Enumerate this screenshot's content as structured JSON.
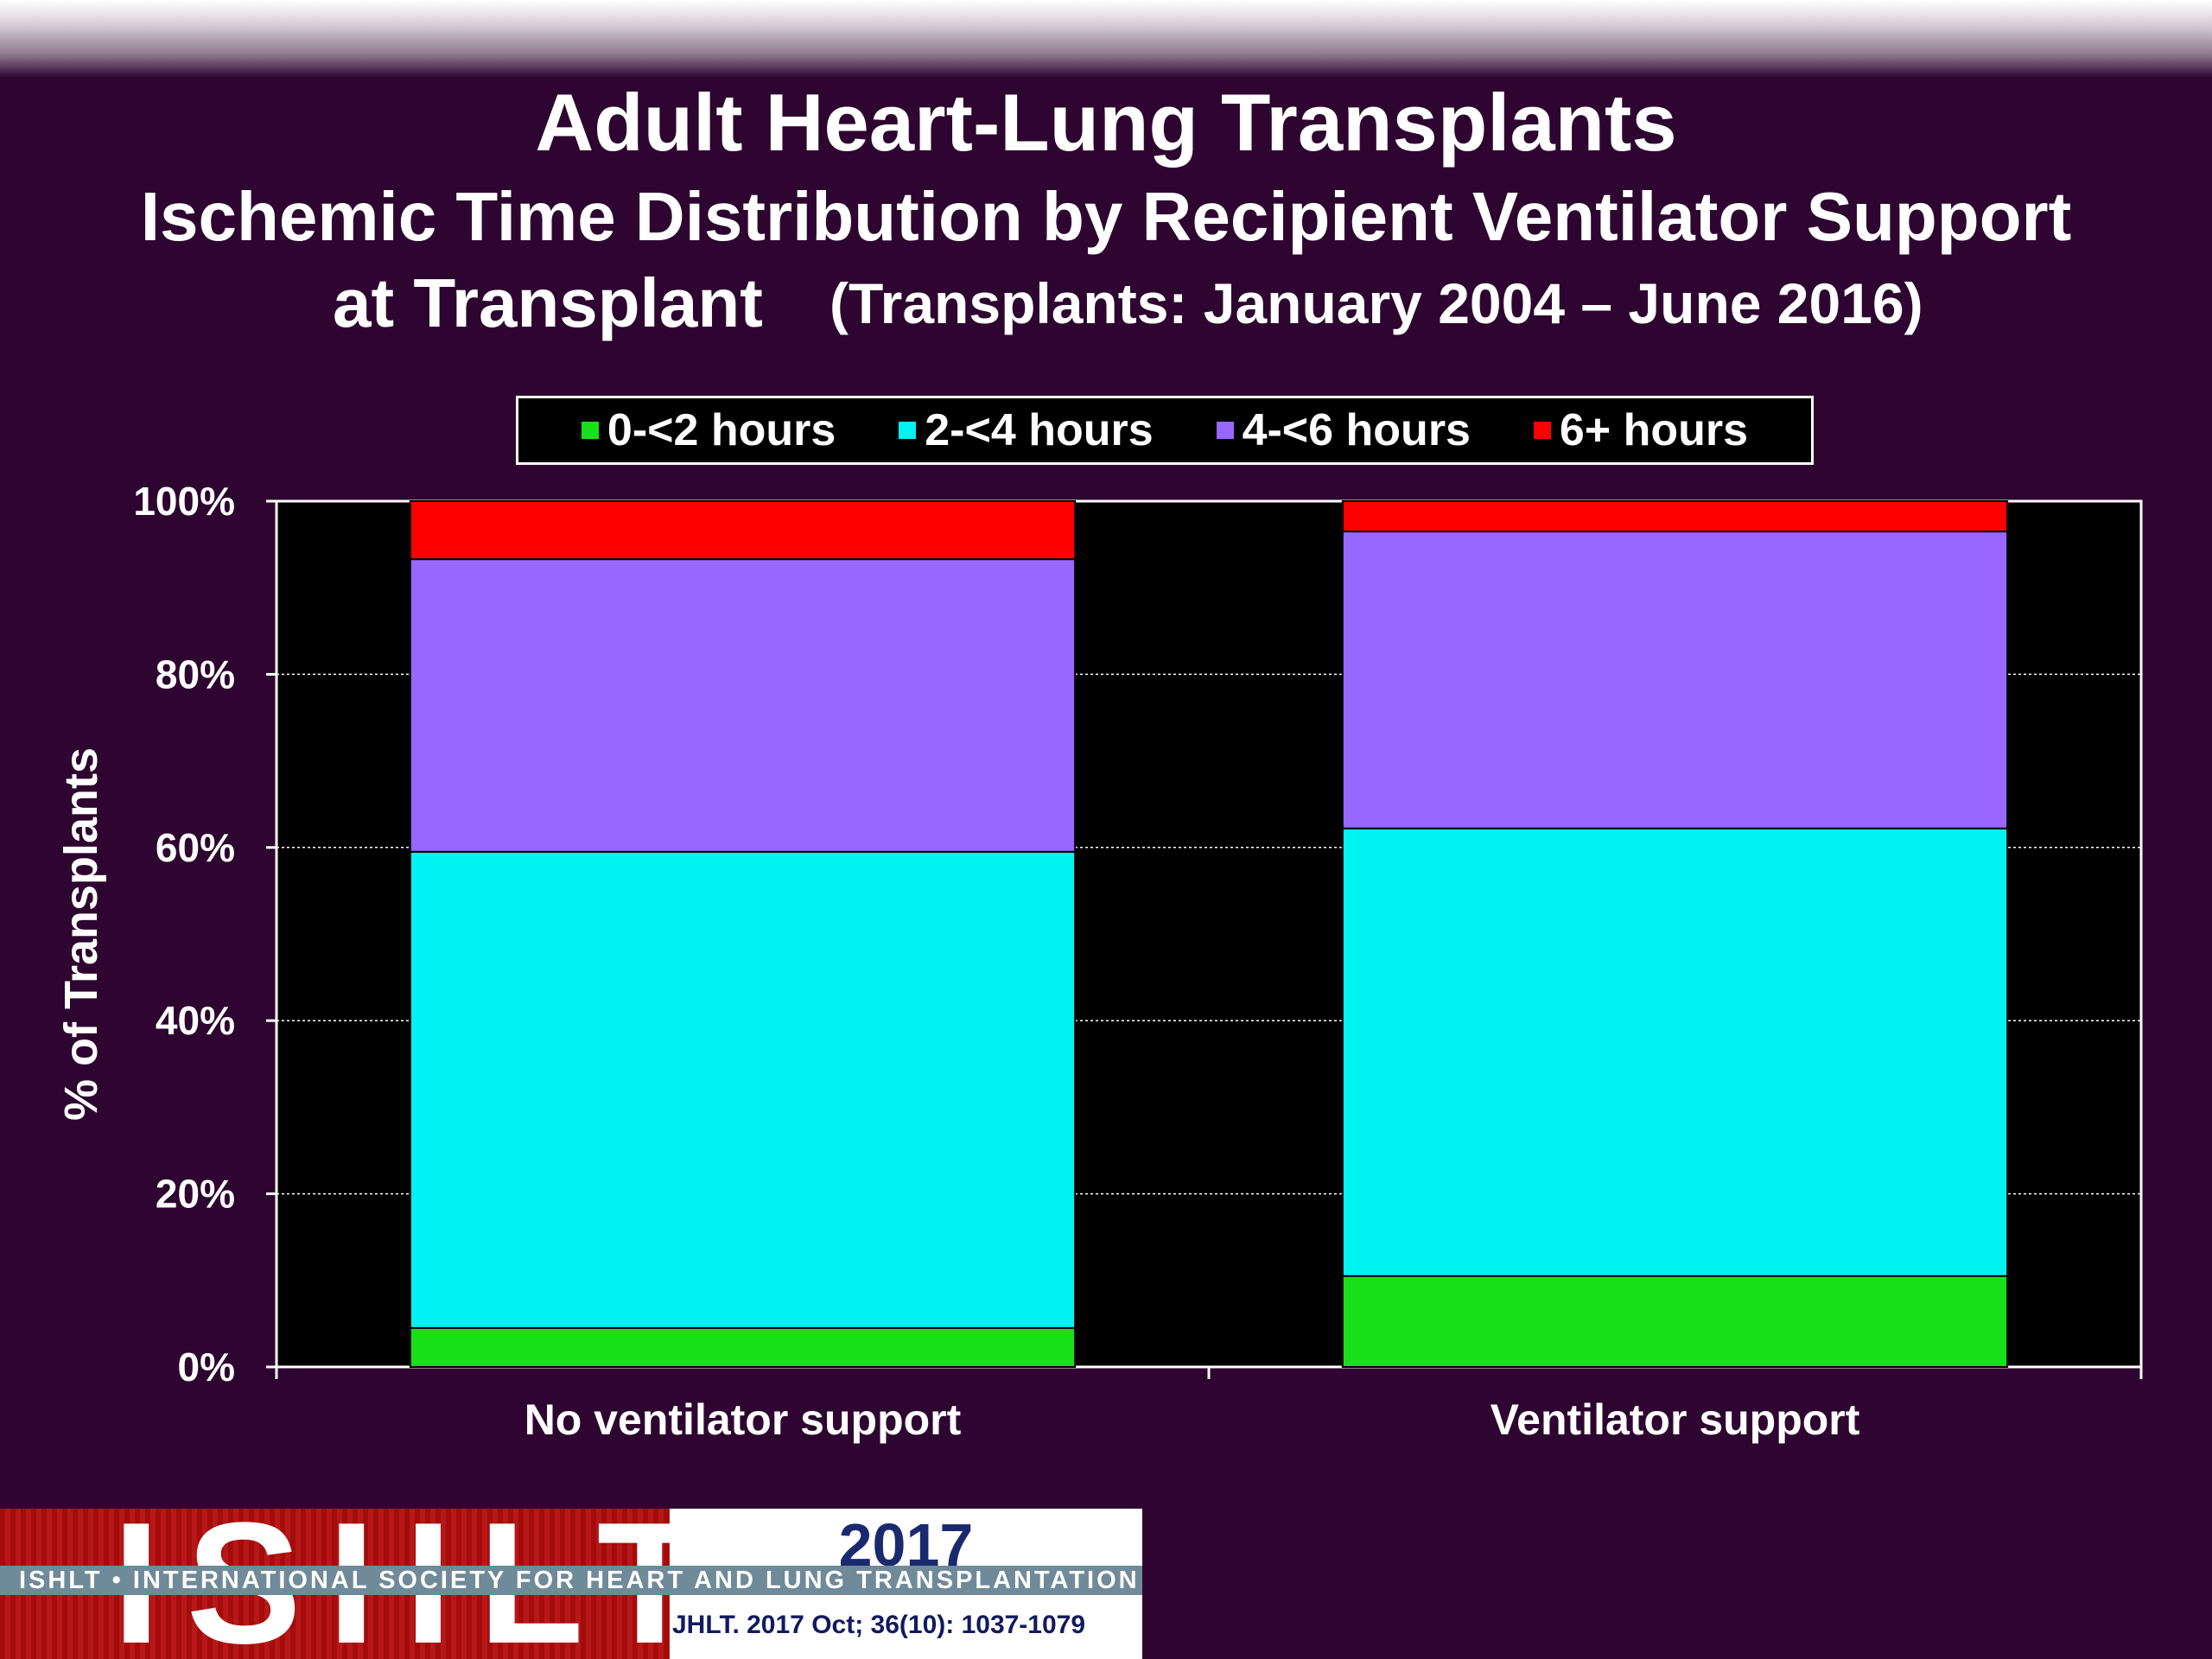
{
  "title": {
    "line1": "Adult Heart-Lung Transplants",
    "line2": "Ischemic Time Distribution by Recipient Ventilator Support",
    "line3": "at Transplant",
    "line3_sub": "(Transplants: January 2004 – June 2016)"
  },
  "footer": {
    "logo_text": "ISHLT",
    "year": "2017",
    "society": "ISHLT • INTERNATIONAL SOCIETY FOR HEART AND LUNG TRANSPLANTATION",
    "citation": "JHLT. 2017 Oct; 36(10): 1037-1079"
  },
  "colors": {
    "background": "#2e0530",
    "plot_background": "#000000",
    "green": "#18e018",
    "cyan": "#00f2f2",
    "purple": "#9966ff",
    "red": "#ff0000"
  },
  "chart_data": {
    "type": "bar",
    "stacked": true,
    "categories": [
      "No ventilator support",
      "Ventilator support"
    ],
    "series": [
      {
        "name": "0-<2 hours",
        "color": "#18e018",
        "values": [
          4.5,
          10.5
        ]
      },
      {
        "name": "2-<4 hours",
        "color": "#00f2f2",
        "values": [
          55.0,
          51.7
        ]
      },
      {
        "name": "4-<6 hours",
        "color": "#9966ff",
        "values": [
          33.8,
          34.3
        ]
      },
      {
        "name": "6+ hours",
        "color": "#ff0000",
        "values": [
          6.7,
          3.5
        ]
      }
    ],
    "ylabel": "% of Transplants",
    "ylim": [
      0,
      100
    ],
    "yticks": [
      0,
      20,
      40,
      60,
      80,
      100
    ],
    "ytick_labels": [
      "0%",
      "20%",
      "40%",
      "60%",
      "80%",
      "100%"
    ],
    "grid": true,
    "legend_position": "top"
  }
}
